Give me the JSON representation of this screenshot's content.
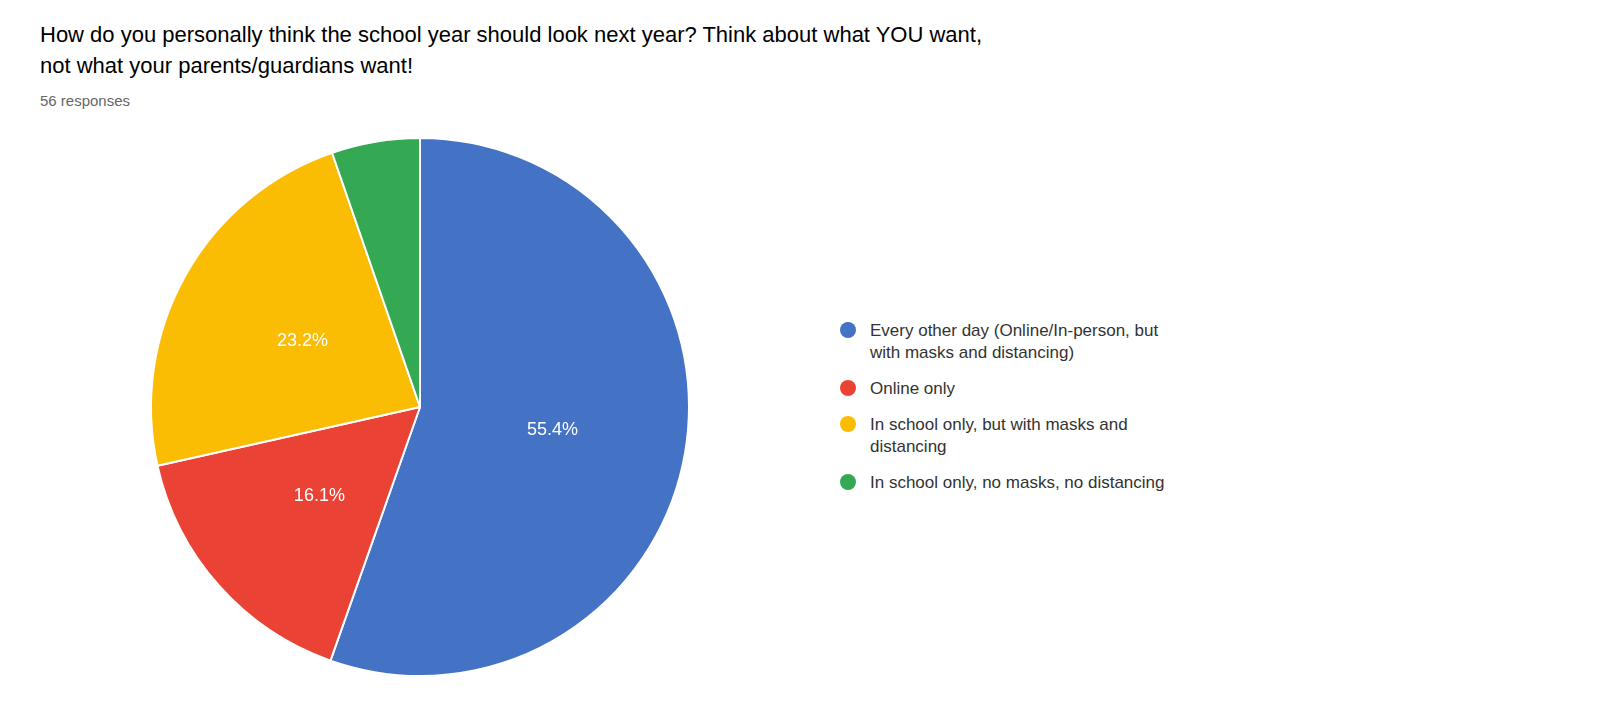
{
  "chart_data": {
    "type": "pie",
    "title": "How do you personally think the school year should look next year? Think about what YOU want,\nnot what your parents/guardians want!",
    "subtitle": "56 responses",
    "categories": [
      "Every other day (Online/In-person, but\nwith masks and distancing)",
      "Online only",
      "In school only, but with masks and\ndistancing",
      "In school only, no masks, no distancing"
    ],
    "values": [
      55.4,
      16.1,
      23.2,
      5.3
    ],
    "colors": [
      "#4472C4",
      "#EA4335",
      "#FBBC04",
      "#34A853"
    ],
    "data_labels": true,
    "value_labels": [
      "55.4%",
      "16.1%",
      "23.2%",
      null
    ],
    "legend": "right"
  }
}
